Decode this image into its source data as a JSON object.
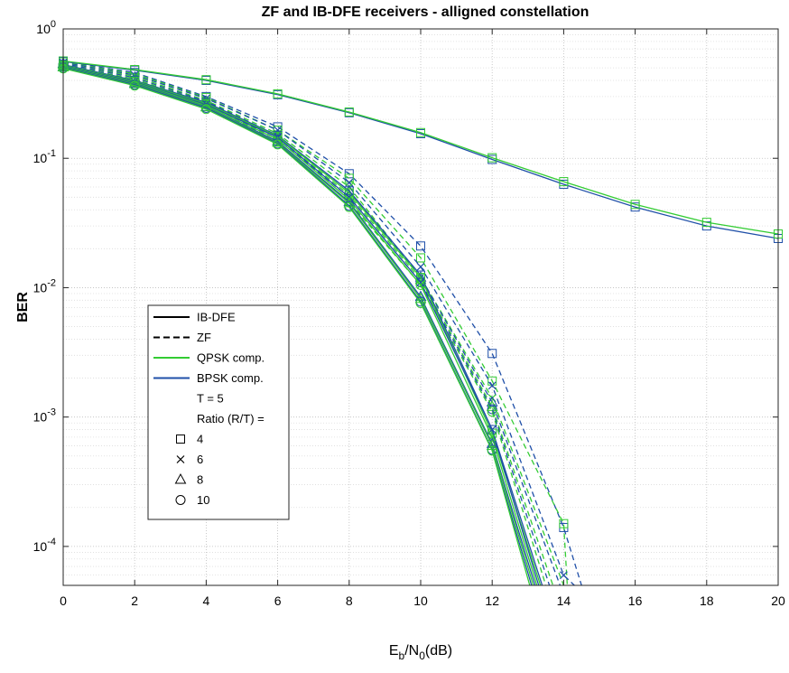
{
  "chart_data": {
    "type": "line",
    "title": "ZF and IB-DFE receivers - alligned constellation",
    "xlabel": {
      "base": "E",
      "sub1": "b",
      "mid": "/N",
      "sub2": "0",
      "tail": "(dB)"
    },
    "ylabel": "BER",
    "xlim": [
      0,
      20
    ],
    "ylim": [
      5e-05,
      1
    ],
    "yscale": "log",
    "xticks": [
      0,
      2,
      4,
      6,
      8,
      10,
      12,
      14,
      16,
      18,
      20
    ],
    "xtick_labels": [
      "0",
      "2",
      "4",
      "6",
      "8",
      "10",
      "12",
      "14",
      "16",
      "18",
      "20"
    ],
    "yticks": [
      {
        "value": 1,
        "base": "10",
        "exp": "0"
      },
      {
        "value": 0.1,
        "base": "10",
        "exp": "-1"
      },
      {
        "value": 0.01,
        "base": "10",
        "exp": "-2"
      },
      {
        "value": 0.001,
        "base": "10",
        "exp": "-3"
      },
      {
        "value": 0.0001,
        "base": "10",
        "exp": "-4"
      }
    ],
    "grid": true,
    "minor_grid": true,
    "legend_position": "center-left",
    "colors": {
      "qpsk": "#33cc33",
      "bpsk": "#1f4fa8",
      "grid": "#dcdcdc",
      "axis": "#262626"
    },
    "legend": [
      {
        "label": "IB-DFE",
        "line": "solid",
        "color": "#000000"
      },
      {
        "label": "ZF",
        "line": "dashed",
        "color": "#000000"
      },
      {
        "label": "QPSK comp.",
        "line": "solid",
        "color": "#33cc33"
      },
      {
        "label": "BPSK comp.",
        "line": "solid",
        "color": "#1f4fa8"
      },
      {
        "label": "T = 5",
        "line": "none"
      },
      {
        "label": "Ratio (R/T) =",
        "line": "none"
      },
      {
        "label": "4",
        "marker": "square"
      },
      {
        "label": "6",
        "marker": "x"
      },
      {
        "label": "8",
        "marker": "triangle"
      },
      {
        "label": "10",
        "marker": "circle"
      }
    ],
    "series": [
      {
        "color": "bpsk",
        "line": "solid",
        "marker": "square",
        "x": [
          0,
          2,
          4,
          6,
          8,
          10,
          12,
          14,
          16,
          18,
          20
        ],
        "y": [
          0.56,
          0.48,
          0.4,
          0.31,
          0.225,
          0.155,
          0.098,
          0.063,
          0.042,
          0.03,
          0.024
        ]
      },
      {
        "color": "qpsk",
        "line": "solid",
        "marker": "square",
        "x": [
          0,
          2,
          4,
          6,
          8,
          10,
          12,
          14,
          16,
          18,
          20
        ],
        "y": [
          0.565,
          0.485,
          0.405,
          0.315,
          0.228,
          0.158,
          0.101,
          0.066,
          0.044,
          0.032,
          0.026
        ]
      },
      {
        "color": "bpsk",
        "line": "dashed",
        "marker": "square",
        "x": [
          0,
          2,
          4,
          6,
          8,
          10,
          12,
          14,
          14.5
        ],
        "y": [
          0.56,
          0.46,
          0.3,
          0.175,
          0.076,
          0.021,
          0.0031,
          0.00014,
          5e-05
        ]
      },
      {
        "color": "qpsk",
        "line": "dashed",
        "marker": "square",
        "x": [
          0,
          2,
          4,
          6,
          8,
          10,
          12,
          14,
          14.1
        ],
        "y": [
          0.555,
          0.45,
          0.295,
          0.165,
          0.07,
          0.017,
          0.0019,
          0.00015,
          5e-05
        ]
      },
      {
        "color": "bpsk",
        "line": "dashed",
        "marker": "x",
        "x": [
          0,
          2,
          4,
          6,
          8,
          10,
          12,
          14,
          14.3
        ],
        "y": [
          0.55,
          0.44,
          0.29,
          0.165,
          0.065,
          0.0145,
          0.00175,
          6e-05,
          5e-05
        ]
      },
      {
        "color": "qpsk",
        "line": "dashed",
        "marker": "x",
        "x": [
          0,
          2,
          4,
          6,
          8,
          10,
          12,
          14
        ],
        "y": [
          0.54,
          0.43,
          0.28,
          0.155,
          0.06,
          0.012,
          0.0014,
          5e-05
        ]
      },
      {
        "color": "bpsk",
        "line": "dashed",
        "marker": "triangle",
        "x": [
          0,
          2,
          4,
          6,
          8,
          10,
          12,
          13.9
        ],
        "y": [
          0.54,
          0.42,
          0.275,
          0.15,
          0.056,
          0.012,
          0.0013,
          5e-05
        ]
      },
      {
        "color": "qpsk",
        "line": "dashed",
        "marker": "triangle",
        "x": [
          0,
          2,
          4,
          6,
          8,
          10,
          12,
          13.7
        ],
        "y": [
          0.53,
          0.41,
          0.27,
          0.145,
          0.052,
          0.0115,
          0.0012,
          5e-05
        ]
      },
      {
        "color": "bpsk",
        "line": "dashed",
        "marker": "circle",
        "x": [
          0,
          2,
          4,
          6,
          8,
          10,
          12,
          13.6
        ],
        "y": [
          0.53,
          0.4,
          0.265,
          0.14,
          0.05,
          0.011,
          0.00115,
          5e-05
        ]
      },
      {
        "color": "qpsk",
        "line": "dashed",
        "marker": "circle",
        "x": [
          0,
          2,
          4,
          6,
          8,
          10,
          12,
          13.5
        ],
        "y": [
          0.52,
          0.39,
          0.26,
          0.135,
          0.046,
          0.0105,
          0.0011,
          5e-05
        ]
      },
      {
        "color": "bpsk",
        "line": "solid",
        "marker": "square",
        "x": [
          0,
          2,
          4,
          6,
          8,
          10,
          12,
          13.4
        ],
        "y": [
          0.53,
          0.4,
          0.27,
          0.15,
          0.056,
          0.0125,
          0.0008,
          5e-05
        ]
      },
      {
        "color": "qpsk",
        "line": "solid",
        "marker": "square",
        "x": [
          0,
          2,
          4,
          6,
          8,
          10,
          12,
          13.35
        ],
        "y": [
          0.525,
          0.395,
          0.265,
          0.148,
          0.054,
          0.012,
          0.00075,
          5e-05
        ]
      },
      {
        "color": "bpsk",
        "line": "solid",
        "marker": "x",
        "x": [
          0,
          2,
          4,
          6,
          8,
          10,
          12,
          13.3
        ],
        "y": [
          0.52,
          0.39,
          0.26,
          0.145,
          0.05,
          0.011,
          0.0008,
          5e-05
        ]
      },
      {
        "color": "qpsk",
        "line": "solid",
        "marker": "x",
        "x": [
          0,
          2,
          4,
          6,
          8,
          10,
          12,
          13.25
        ],
        "y": [
          0.515,
          0.385,
          0.255,
          0.14,
          0.048,
          0.0105,
          0.0007,
          5e-05
        ]
      },
      {
        "color": "bpsk",
        "line": "solid",
        "marker": "triangle",
        "x": [
          0,
          2,
          4,
          6,
          8,
          10,
          12,
          13.2
        ],
        "y": [
          0.51,
          0.38,
          0.25,
          0.135,
          0.046,
          0.0085,
          0.00062,
          5e-05
        ]
      },
      {
        "color": "qpsk",
        "line": "solid",
        "marker": "triangle",
        "x": [
          0,
          2,
          4,
          6,
          8,
          10,
          12,
          13.15
        ],
        "y": [
          0.505,
          0.375,
          0.248,
          0.132,
          0.045,
          0.0082,
          0.0006,
          5e-05
        ]
      },
      {
        "color": "bpsk",
        "line": "solid",
        "marker": "circle",
        "x": [
          0,
          2,
          4,
          6,
          8,
          10,
          12,
          13.1
        ],
        "y": [
          0.5,
          0.37,
          0.245,
          0.13,
          0.043,
          0.0078,
          0.00056,
          5e-05
        ]
      },
      {
        "color": "qpsk",
        "line": "solid",
        "marker": "circle",
        "x": [
          0,
          2,
          4,
          6,
          8,
          10,
          12,
          13.05
        ],
        "y": [
          0.495,
          0.365,
          0.24,
          0.128,
          0.042,
          0.0076,
          0.00055,
          5e-05
        ]
      }
    ]
  }
}
